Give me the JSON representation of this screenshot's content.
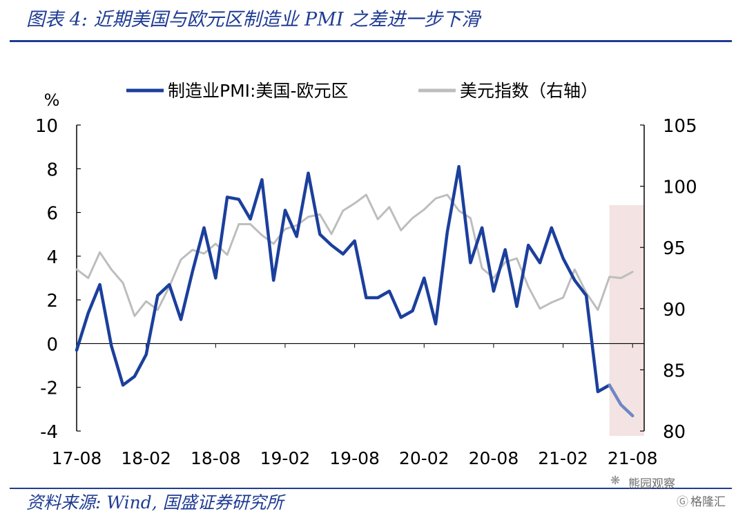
{
  "title": "图表 4:  近期美国与欧元区制造业 PMI 之差进一步下滑",
  "source": "资料来源:  Wind,  国盛证券研究所",
  "watermark": {
    "line1": "熊园观察",
    "line2": "格隆汇"
  },
  "colors": {
    "primary_series": "#1b3f9c",
    "primary_forecast": "#6f86c3",
    "secondary_series": "#bdbdbd",
    "shade": "#f3e3e3",
    "title": "#1f3c93"
  },
  "chart_data": {
    "type": "line",
    "left_unit_label": "%",
    "legend": {
      "position": "top",
      "entries": [
        "制造业PMI:美国-欧元区",
        "美元指数（右轴）"
      ]
    },
    "x_tick_labels": [
      "17-08",
      "18-02",
      "18-08",
      "19-02",
      "19-08",
      "20-02",
      "20-08",
      "21-02",
      "21-08"
    ],
    "x_range": [
      "2017-08",
      "2021-09"
    ],
    "y_left": {
      "range": [
        -4,
        10
      ],
      "ticks": [
        -4,
        -2,
        0,
        2,
        4,
        6,
        8,
        10
      ]
    },
    "y_right": {
      "range": [
        80,
        105
      ],
      "ticks": [
        80,
        85,
        90,
        95,
        100,
        105
      ]
    },
    "grid": false,
    "shaded_region": {
      "from": "2021-06",
      "to": "2021-09"
    },
    "series": [
      {
        "name": "制造业PMI:美国-欧元区",
        "axis": "left",
        "x": [
          "2017-08",
          "2017-09",
          "2017-10",
          "2017-11",
          "2017-12",
          "2018-01",
          "2018-02",
          "2018-03",
          "2018-04",
          "2018-05",
          "2018-06",
          "2018-07",
          "2018-08",
          "2018-09",
          "2018-10",
          "2018-11",
          "2018-12",
          "2019-01",
          "2019-02",
          "2019-03",
          "2019-04",
          "2019-05",
          "2019-06",
          "2019-07",
          "2019-08",
          "2019-09",
          "2019-10",
          "2019-11",
          "2019-12",
          "2020-01",
          "2020-02",
          "2020-03",
          "2020-04",
          "2020-05",
          "2020-06",
          "2020-07",
          "2020-08",
          "2020-09",
          "2020-10",
          "2020-11",
          "2020-12",
          "2021-01",
          "2021-02",
          "2021-03",
          "2021-04",
          "2021-05",
          "2021-06"
        ],
        "values": [
          -0.3,
          1.4,
          2.7,
          -0.1,
          -1.9,
          -1.5,
          -0.5,
          2.2,
          2.7,
          1.1,
          3.3,
          5.3,
          3.0,
          6.7,
          6.6,
          5.7,
          7.5,
          2.9,
          6.1,
          4.9,
          7.8,
          5.0,
          4.5,
          4.1,
          4.7,
          2.1,
          2.1,
          2.4,
          1.2,
          1.5,
          3.0,
          0.9,
          5.1,
          8.1,
          3.7,
          5.3,
          2.4,
          4.3,
          1.7,
          4.5,
          3.7,
          5.3,
          3.9,
          2.9,
          2.2,
          -2.2,
          -1.9
        ]
      },
      {
        "name": "制造业PMI:美国-欧元区",
        "axis": "left",
        "projection": true,
        "x": [
          "2021-06",
          "2021-07",
          "2021-08"
        ],
        "values": [
          -1.9,
          -2.8,
          -3.3
        ]
      },
      {
        "name": "美元指数（右轴）",
        "axis": "right",
        "x": [
          "2017-08",
          "2017-09",
          "2017-10",
          "2017-11",
          "2017-12",
          "2018-01",
          "2018-02",
          "2018-03",
          "2018-04",
          "2018-05",
          "2018-06",
          "2018-07",
          "2018-08",
          "2018-09",
          "2018-10",
          "2018-11",
          "2018-12",
          "2019-01",
          "2019-02",
          "2019-03",
          "2019-04",
          "2019-05",
          "2019-06",
          "2019-07",
          "2019-08",
          "2019-09",
          "2019-10",
          "2019-11",
          "2019-12",
          "2020-01",
          "2020-02",
          "2020-03",
          "2020-04",
          "2020-05",
          "2020-06",
          "2020-07",
          "2020-08",
          "2020-09",
          "2020-10",
          "2020-11",
          "2020-12",
          "2021-01",
          "2021-02",
          "2021-03",
          "2021-04",
          "2021-05",
          "2021-06",
          "2021-07",
          "2021-08"
        ],
        "values": [
          93.2,
          92.5,
          94.6,
          93.2,
          92.1,
          89.4,
          90.6,
          89.9,
          91.8,
          94.0,
          94.8,
          94.5,
          95.3,
          94.4,
          96.9,
          96.9,
          96.0,
          95.3,
          96.5,
          96.8,
          97.5,
          97.7,
          96.1,
          98.0,
          98.6,
          99.3,
          97.3,
          98.3,
          96.4,
          97.4,
          98.1,
          99.0,
          99.3,
          98.0,
          97.4,
          93.3,
          92.5,
          93.8,
          94.1,
          91.8,
          90.0,
          90.5,
          90.9,
          93.2,
          91.3,
          89.9,
          92.6,
          92.5,
          93.0
        ]
      }
    ]
  }
}
